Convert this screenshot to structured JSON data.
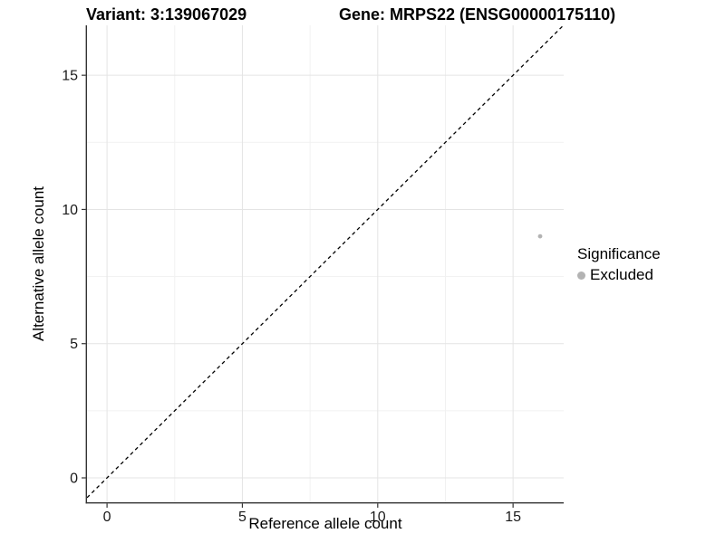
{
  "chart_data": {
    "type": "scatter",
    "title_left": "Variant: 3:139067029",
    "title_right": "Gene: MRPS22 (ENSG00000175110)",
    "xlabel": "Reference allele count",
    "ylabel": "Alternative allele count",
    "xlim": [
      -0.74,
      16.87
    ],
    "ylim": [
      -0.91,
      16.86
    ],
    "x_ticks": [
      0,
      5,
      10,
      15
    ],
    "y_ticks": [
      0,
      5,
      10,
      15
    ],
    "x_minor_ticks": [
      2.5,
      7.5,
      12.5
    ],
    "y_minor_ticks": [
      2.5,
      7.5,
      12.5
    ],
    "grid": "major+minor, light gray on white",
    "identity_line": {
      "slope": 1,
      "intercept": 0,
      "style": "dashed",
      "color": "#000000"
    },
    "series": [
      {
        "name": "Excluded",
        "color": "#b3b3b3",
        "points": [
          {
            "x": 16,
            "y": 9
          }
        ]
      }
    ],
    "legend": {
      "title": "Significance",
      "position": "right",
      "items": [
        {
          "label": "Excluded",
          "color": "#b3b3b3"
        }
      ]
    }
  },
  "styles": {
    "axis_line_color": "#333333",
    "tick_mark_color": "#333333",
    "tick_label_color": "#1a1a1a",
    "grid_major_color": "#e4e4e4",
    "grid_minor_color": "#f1f1f1",
    "point_radius": 2.4,
    "tick_label_size": 16
  }
}
